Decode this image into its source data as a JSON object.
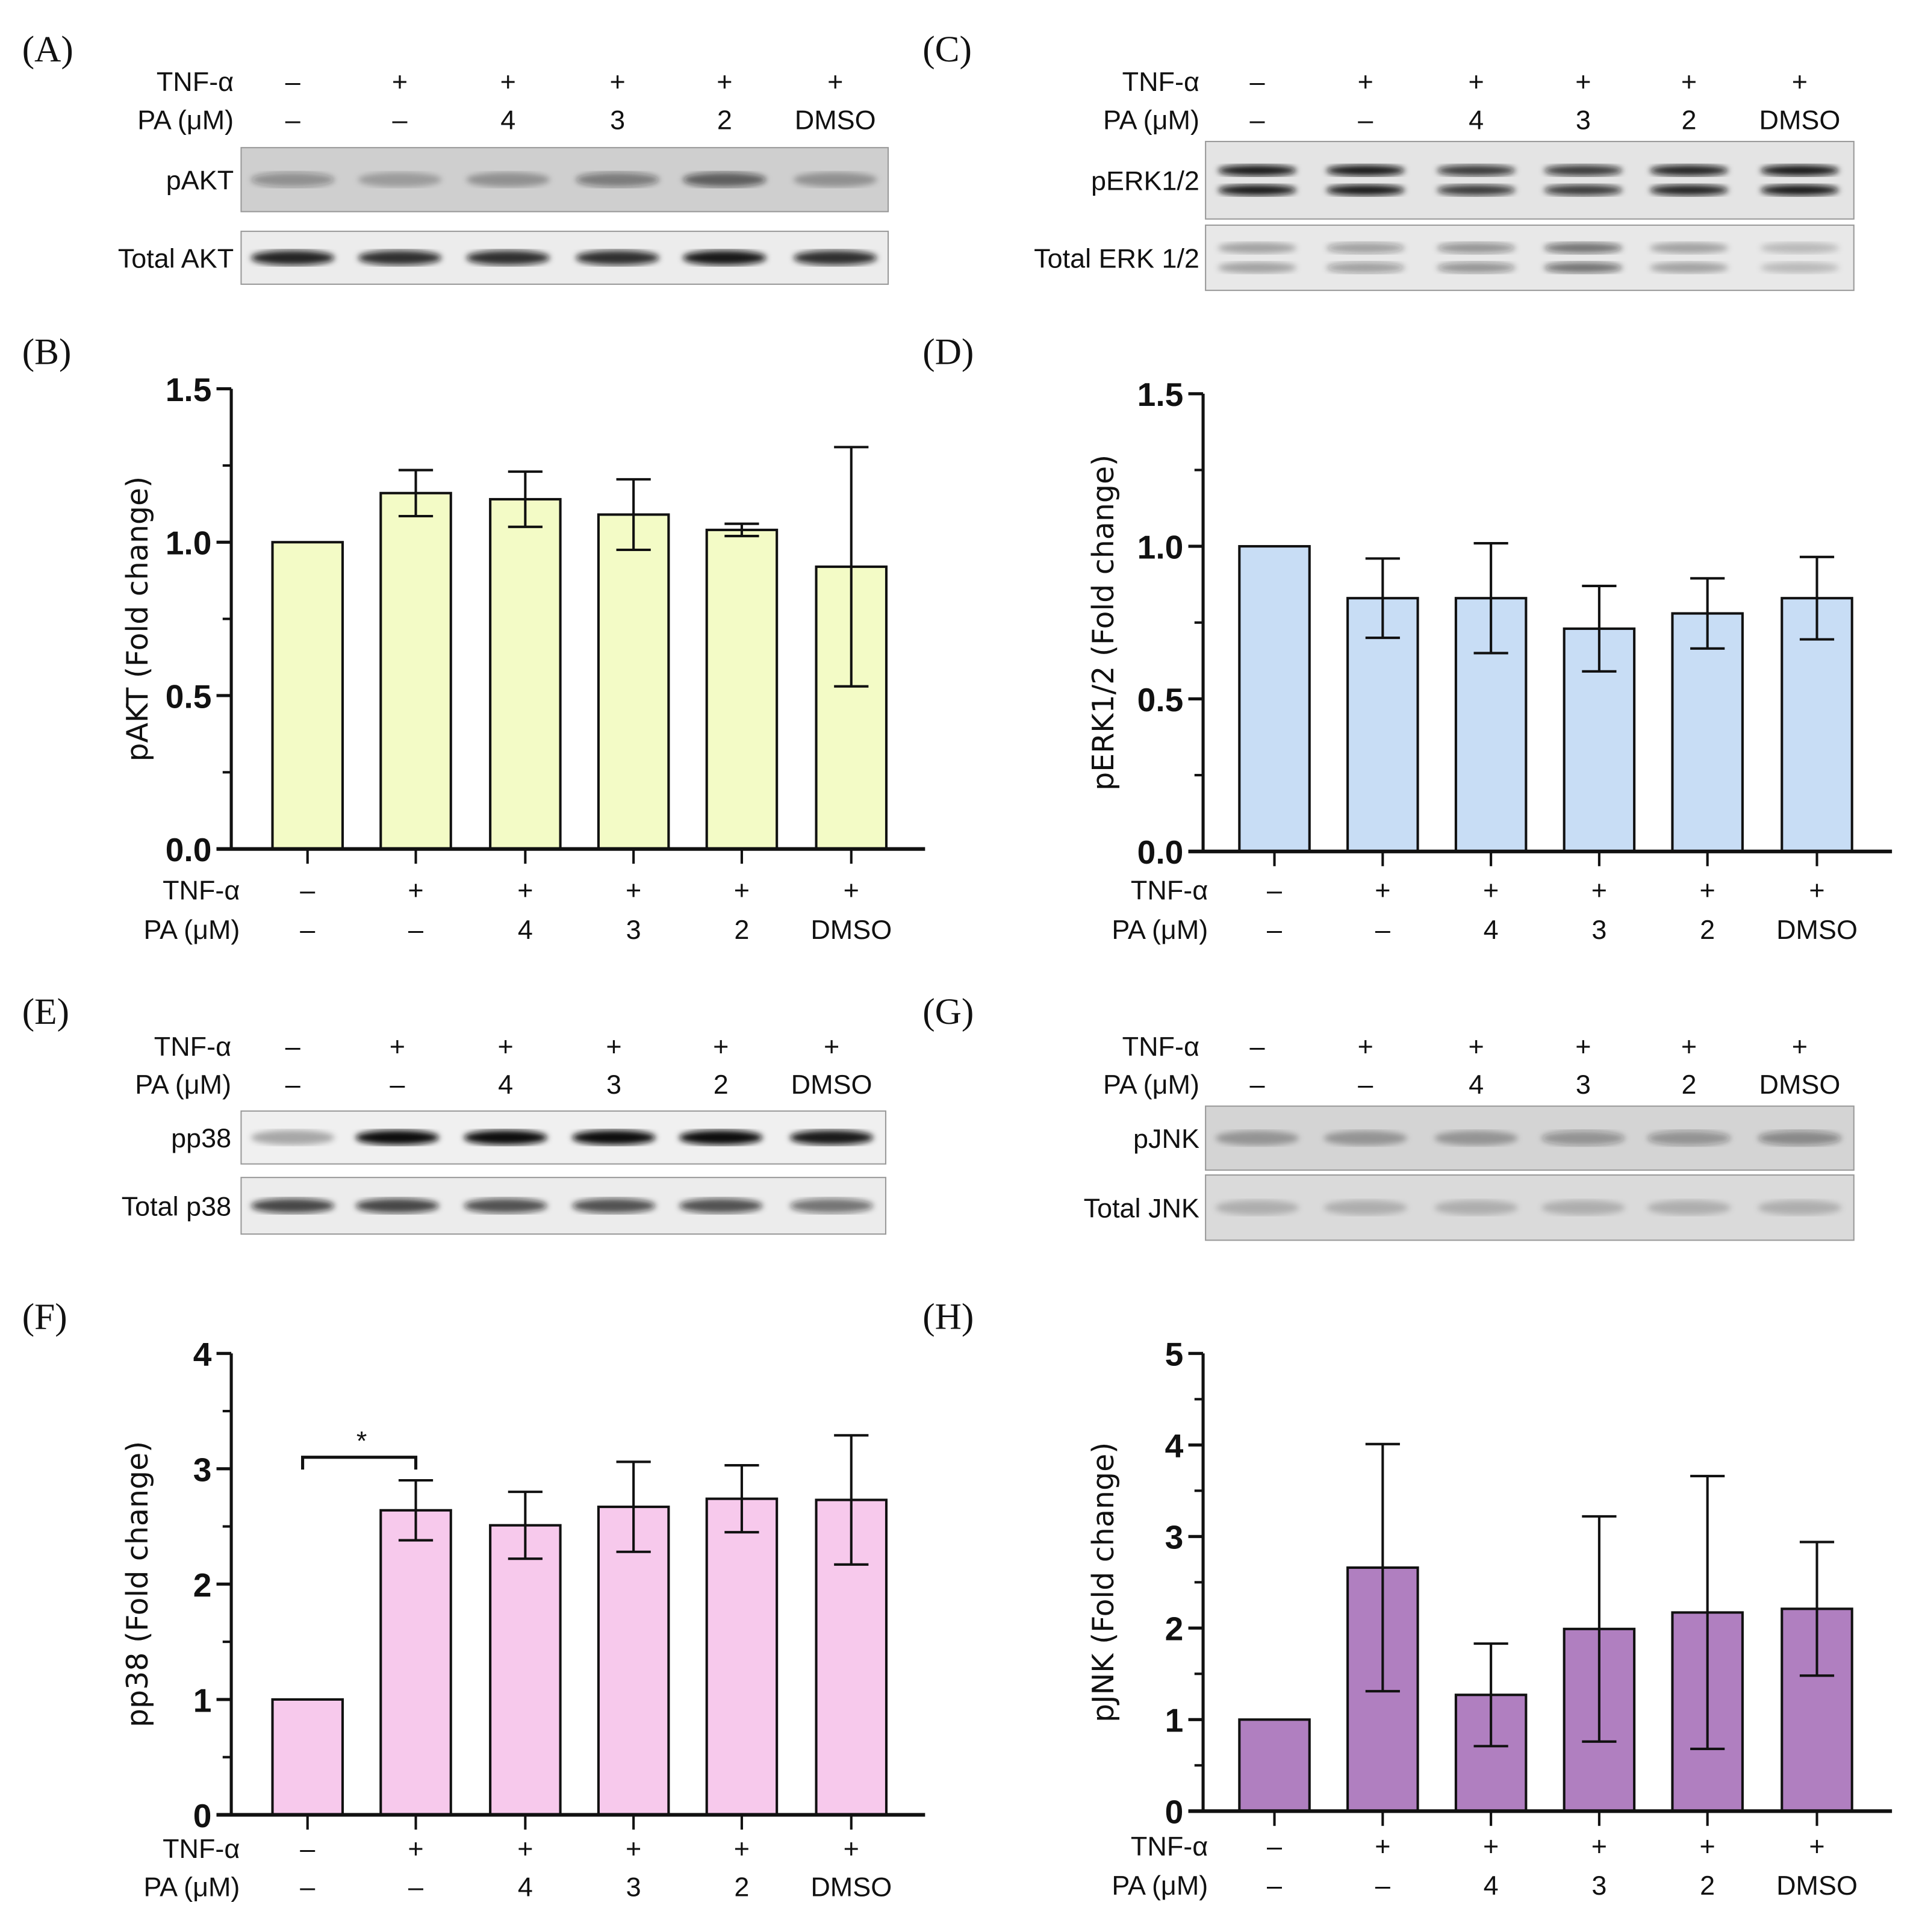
{
  "conditions": {
    "row_labels": [
      "TNF-α",
      "PA (μM)"
    ],
    "tnf": [
      "–",
      "+",
      "+",
      "+",
      "+",
      "+"
    ],
    "pa": [
      "–",
      "–",
      "4",
      "3",
      "2",
      "DMSO"
    ]
  },
  "blots": [
    {
      "panel": "(A)",
      "rows": [
        "pAKT",
        "Total AKT"
      ]
    },
    {
      "panel": "(C)",
      "rows": [
        "pERK1/2",
        "Total ERK 1/2"
      ]
    },
    {
      "panel": "(E)",
      "rows": [
        "pp38",
        "Total p38"
      ]
    },
    {
      "panel": "(G)",
      "rows": [
        "pJNK",
        "Total JNK"
      ]
    }
  ],
  "chart_data": [
    {
      "panel": "(B)",
      "type": "bar",
      "ylabel": "pAKT (Fold change)",
      "ylim": [
        0,
        1.5
      ],
      "ticks": [
        "0.0",
        "0.5",
        "1.0",
        "1.5"
      ],
      "tick_values": [
        0,
        0.5,
        1.0,
        1.5
      ],
      "values": [
        1.0,
        1.16,
        1.14,
        1.09,
        1.04,
        0.92
      ],
      "errors": [
        0,
        0.075,
        0.09,
        0.115,
        0.02,
        0.39
      ],
      "color": "#f3fbc6",
      "annotations": []
    },
    {
      "panel": "(D)",
      "type": "bar",
      "ylabel": "pERK1/2 (Fold change)",
      "ylim": [
        0,
        1.5
      ],
      "ticks": [
        "0.0",
        "0.5",
        "1.0",
        "1.5"
      ],
      "tick_values": [
        0,
        0.5,
        1.0,
        1.5
      ],
      "values": [
        1.0,
        0.83,
        0.83,
        0.73,
        0.78,
        0.83
      ],
      "errors": [
        0,
        0.13,
        0.18,
        0.14,
        0.115,
        0.135
      ],
      "color": "#c8ddf5",
      "annotations": []
    },
    {
      "panel": "(F)",
      "type": "bar",
      "ylabel": "pp38 (Fold change)",
      "ylim": [
        0,
        4
      ],
      "ticks": [
        "0",
        "1",
        "2",
        "3",
        "4"
      ],
      "tick_values": [
        0,
        1,
        2,
        3,
        4
      ],
      "values": [
        1.0,
        2.64,
        2.51,
        2.67,
        2.74,
        2.73
      ],
      "errors": [
        0,
        0.26,
        0.29,
        0.39,
        0.29,
        0.56
      ],
      "color": "#f7c9ec",
      "annotations": [
        {
          "text": "*",
          "from": 0,
          "to": 1,
          "y": 3.1
        }
      ]
    },
    {
      "panel": "(H)",
      "type": "bar",
      "ylabel": "pJNK (Fold change)",
      "ylim": [
        0,
        5
      ],
      "ticks": [
        "0",
        "1",
        "2",
        "3",
        "4",
        "5"
      ],
      "tick_values": [
        0,
        1,
        2,
        3,
        4,
        5
      ],
      "values": [
        1.0,
        2.66,
        1.27,
        1.99,
        2.17,
        2.21
      ],
      "errors": [
        0,
        1.35,
        0.56,
        1.23,
        1.49,
        0.73
      ],
      "color": "#b07fc0",
      "annotations": []
    }
  ]
}
